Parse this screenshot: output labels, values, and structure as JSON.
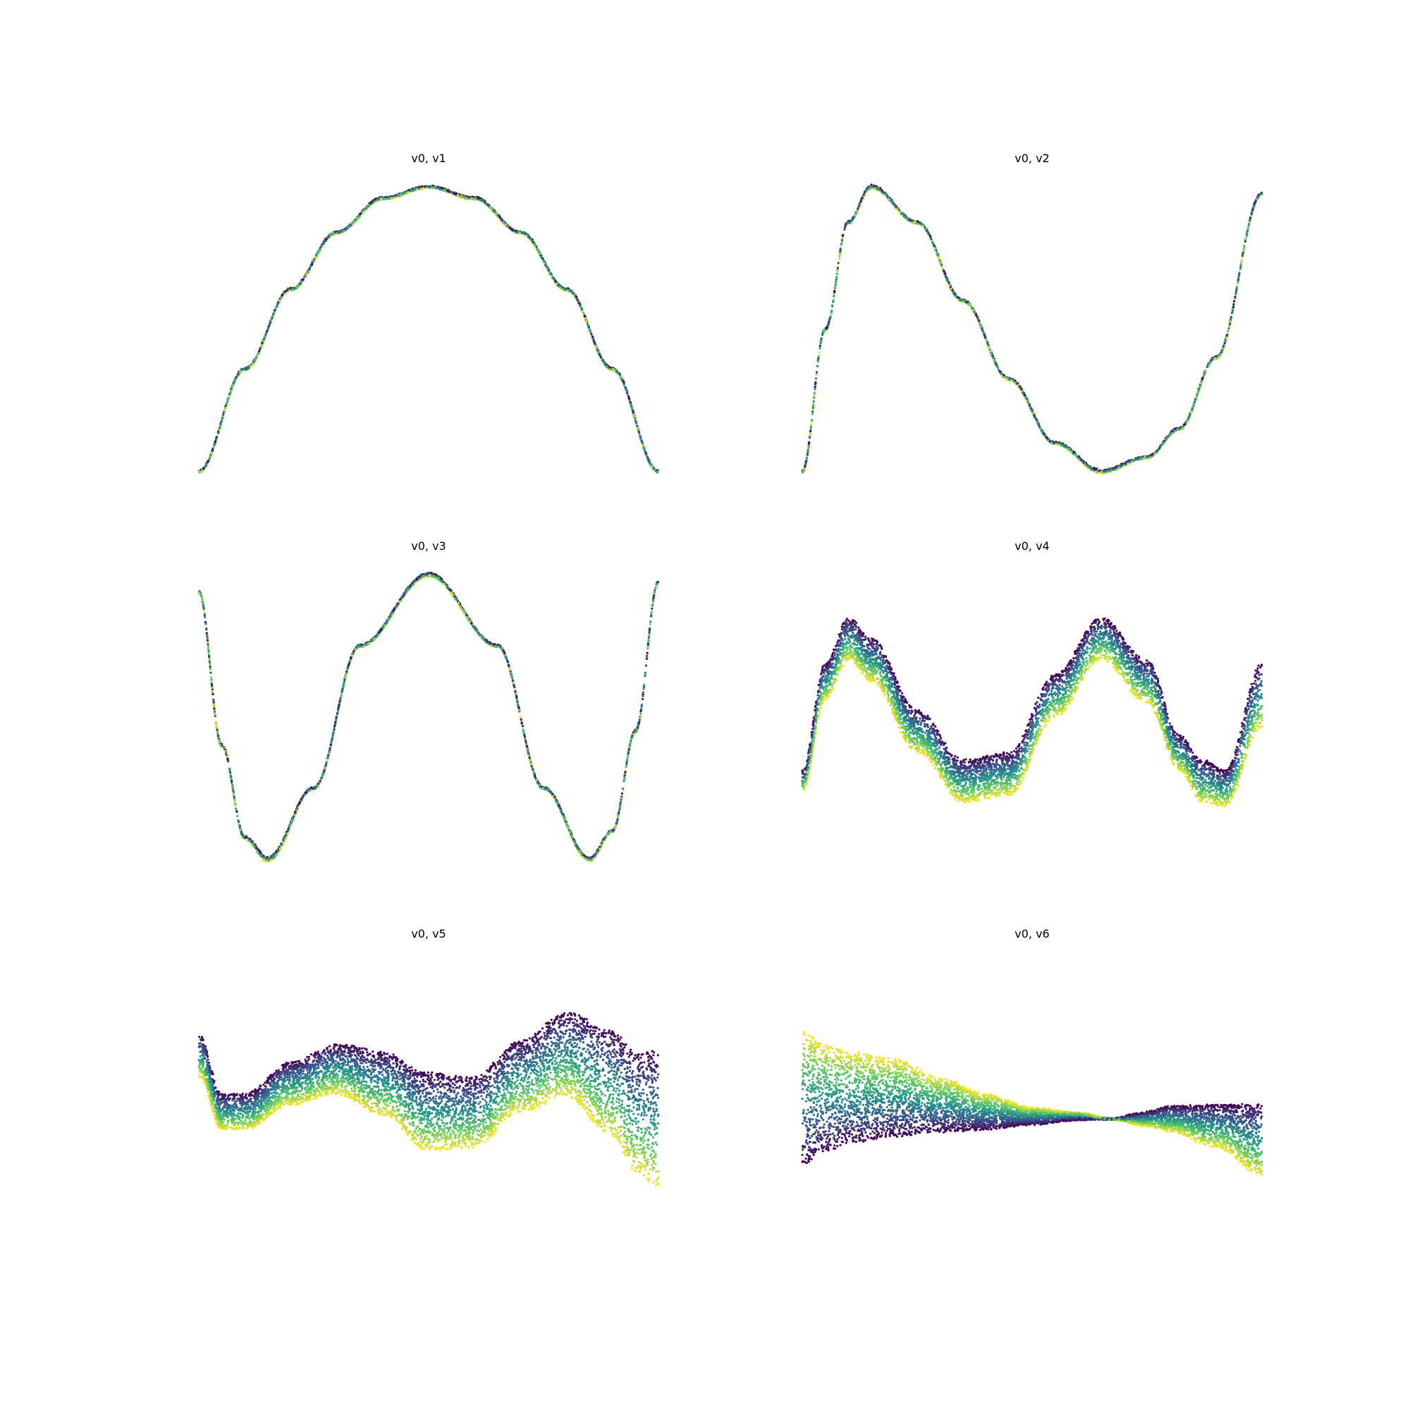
{
  "figure": {
    "background": "#ffffff",
    "axes_visible": false,
    "grid": false,
    "colormap": "viridis",
    "colormap_stops": [
      "#440154",
      "#3b528b",
      "#21918c",
      "#5ec962",
      "#fde725"
    ]
  },
  "chart_data": [
    {
      "type": "scatter",
      "title": "v0, v1",
      "xlabel": "",
      "ylabel": "",
      "xlim": [
        0,
        1
      ],
      "ylim": [
        -1.05,
        1.05
      ],
      "curve_pattern": "single arch",
      "x": [
        0,
        0.1,
        0.2,
        0.3,
        0.4,
        0.5,
        0.6,
        0.7,
        0.8,
        0.9,
        1
      ],
      "y": [
        -1,
        -0.28,
        0.28,
        0.68,
        0.92,
        1,
        0.92,
        0.68,
        0.28,
        -0.28,
        -1
      ],
      "spread": [
        0.01,
        0.01,
        0.01,
        0.01,
        0.01,
        0.01,
        0.01,
        0.01,
        0.01,
        0.01,
        0.01
      ],
      "points": 2500
    },
    {
      "type": "scatter",
      "title": "v0, v2",
      "xlabel": "",
      "ylabel": "",
      "xlim": [
        0,
        1
      ],
      "ylim": [
        -1.05,
        1.05
      ],
      "curve_pattern": "rise, fall, rise",
      "x": [
        0,
        0.05,
        0.1,
        0.15,
        0.25,
        0.35,
        0.45,
        0.55,
        0.65,
        0.75,
        0.82,
        0.9,
        1
      ],
      "y": [
        -1,
        0,
        0.75,
        1,
        0.75,
        0.2,
        -0.35,
        -0.8,
        -1,
        -0.9,
        -0.7,
        -0.2,
        0.95
      ],
      "spread": [
        0.01,
        0.01,
        0.01,
        0.02,
        0.01,
        0.01,
        0.01,
        0.01,
        0.02,
        0.01,
        0.01,
        0.01,
        0.01
      ],
      "points": 2500
    },
    {
      "type": "scatter",
      "title": "v0, v3",
      "xlabel": "",
      "ylabel": "",
      "xlim": [
        0,
        1
      ],
      "ylim": [
        -1.05,
        1.05
      ],
      "curve_pattern": "W shape",
      "x": [
        0,
        0.05,
        0.1,
        0.15,
        0.25,
        0.35,
        0.5,
        0.65,
        0.75,
        0.85,
        0.9,
        0.95,
        1
      ],
      "y": [
        0.88,
        -0.2,
        -0.85,
        -1,
        -0.5,
        0.5,
        1,
        0.5,
        -0.5,
        -1,
        -0.8,
        -0.1,
        0.95
      ],
      "spread": [
        0.01,
        0.01,
        0.02,
        0.03,
        0.01,
        0.01,
        0.02,
        0.01,
        0.01,
        0.02,
        0.01,
        0.01,
        0.01
      ],
      "points": 2800
    },
    {
      "type": "scatter",
      "title": "v0, v4",
      "xlabel": "",
      "ylabel": "",
      "xlim": [
        0,
        1
      ],
      "ylim": [
        -1.05,
        1.05
      ],
      "curve_pattern": "double hump band, color spread",
      "x": [
        0,
        0.05,
        0.1,
        0.15,
        0.25,
        0.35,
        0.45,
        0.55,
        0.65,
        0.75,
        0.82,
        0.87,
        0.92,
        1
      ],
      "y": [
        -0.45,
        0.25,
        0.55,
        0.4,
        -0.1,
        -0.45,
        -0.4,
        0.15,
        0.55,
        0.25,
        -0.25,
        -0.45,
        -0.5,
        0.15
      ],
      "spread": [
        0.15,
        0.25,
        0.3,
        0.3,
        0.3,
        0.3,
        0.3,
        0.3,
        0.3,
        0.3,
        0.25,
        0.3,
        0.25,
        0.45
      ],
      "points": 6000
    },
    {
      "type": "scatter",
      "title": "v0, v5",
      "xlabel": "",
      "ylabel": "",
      "xlim": [
        0,
        1
      ],
      "ylim": [
        -1.05,
        1.05
      ],
      "curve_pattern": "wavy widening band",
      "x": [
        0,
        0.05,
        0.1,
        0.2,
        0.3,
        0.4,
        0.5,
        0.6,
        0.7,
        0.8,
        0.9,
        0.95,
        1
      ],
      "y": [
        0.35,
        -0.05,
        -0.05,
        0.15,
        0.25,
        0.15,
        -0.05,
        -0.05,
        0.2,
        0.35,
        0.15,
        -0.05,
        -0.1
      ],
      "spread": [
        0.3,
        0.25,
        0.25,
        0.3,
        0.35,
        0.45,
        0.55,
        0.5,
        0.5,
        0.6,
        0.75,
        0.85,
        0.95
      ],
      "points": 6500
    },
    {
      "type": "scatter",
      "title": "v0, v6",
      "xlabel": "",
      "ylabel": "",
      "xlim": [
        0,
        1
      ],
      "ylim": [
        -1.05,
        1.05
      ],
      "curve_pattern": "bow tie crossing, colors swap sides",
      "x": [
        0,
        0.05,
        0.1,
        0.2,
        0.3,
        0.4,
        0.5,
        0.6,
        0.67,
        0.75,
        0.8,
        0.9,
        1
      ],
      "y": [
        0.05,
        0.05,
        0.05,
        0.05,
        0.0,
        -0.05,
        -0.08,
        -0.08,
        -0.1,
        -0.1,
        -0.1,
        -0.15,
        -0.25
      ],
      "spread": [
        -0.95,
        -0.75,
        -0.65,
        -0.55,
        -0.38,
        -0.25,
        -0.12,
        -0.05,
        0,
        0.1,
        0.18,
        0.3,
        0.5
      ],
      "points": 6500
    }
  ]
}
